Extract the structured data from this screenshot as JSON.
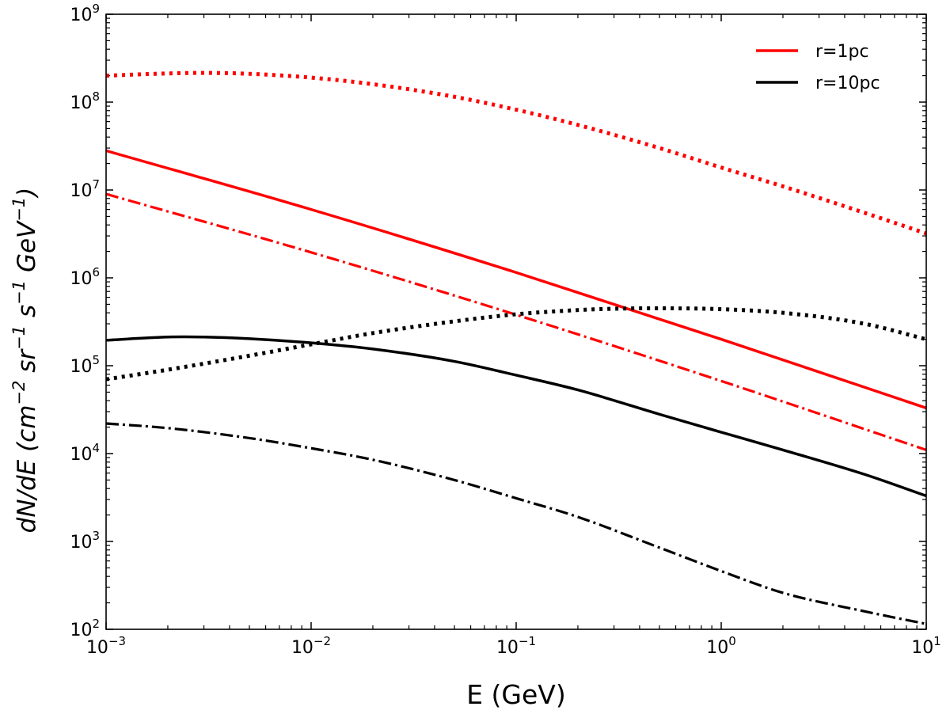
{
  "chart_data": {
    "type": "line",
    "xscale": "log",
    "yscale": "log",
    "xlim": [
      0.001,
      10
    ],
    "ylim": [
      100,
      1000000000
    ],
    "xlabel": "E (GeV)",
    "ylabel": {
      "prefix": "dN/dE (cm",
      "exp1": "−2",
      "mid1": " sr",
      "exp2": "−1",
      "mid2": " s",
      "exp3": "−1",
      "mid3": " GeV",
      "exp4": "−1",
      "suffix": ")"
    },
    "xticks": [
      {
        "value": 0.001,
        "base": "10",
        "exp": "−3"
      },
      {
        "value": 0.01,
        "base": "10",
        "exp": "−2"
      },
      {
        "value": 0.1,
        "base": "10",
        "exp": "−1"
      },
      {
        "value": 1,
        "base": "10",
        "exp": "0"
      },
      {
        "value": 10,
        "base": "10",
        "exp": "1"
      }
    ],
    "yticks": [
      {
        "value": 100,
        "base": "10",
        "exp": "2"
      },
      {
        "value": 1000,
        "base": "10",
        "exp": "3"
      },
      {
        "value": 10000,
        "base": "10",
        "exp": "4"
      },
      {
        "value": 100000,
        "base": "10",
        "exp": "5"
      },
      {
        "value": 1000000,
        "base": "10",
        "exp": "6"
      },
      {
        "value": 10000000,
        "base": "10",
        "exp": "7"
      },
      {
        "value": 100000000,
        "base": "10",
        "exp": "8"
      },
      {
        "value": 1000000000,
        "base": "10",
        "exp": "9"
      }
    ],
    "legend": {
      "placement": "top-right",
      "entries": [
        {
          "label": "r=1pc",
          "color": "#ff0000"
        },
        {
          "label": "r=10pc",
          "color": "#000000"
        }
      ]
    },
    "series": [
      {
        "name": "r=1pc solid",
        "color": "#ff0000",
        "style": "solid",
        "x": [
          0.001,
          0.01,
          0.1,
          1,
          10
        ],
        "y": [
          28000000,
          6000000,
          1150000,
          200000,
          33000
        ]
      },
      {
        "name": "r=1pc dashdot",
        "color": "#ff0000",
        "style": "dashdot",
        "x": [
          0.001,
          0.01,
          0.1,
          1,
          10
        ],
        "y": [
          9000000,
          1950000,
          380000,
          67000,
          11000
        ]
      },
      {
        "name": "r=1pc dotted",
        "color": "#ff0000",
        "style": "dotted",
        "x": [
          0.001,
          0.002,
          0.003,
          0.005,
          0.01,
          0.02,
          0.05,
          0.1,
          0.2,
          0.5,
          1,
          2,
          5,
          10
        ],
        "y": [
          200000000,
          212000000,
          215000000,
          210000000,
          190000000,
          160000000,
          115000000,
          82000000,
          55000000,
          30000000,
          18000000,
          11000000,
          5500000,
          3200000
        ]
      },
      {
        "name": "r=10pc solid",
        "color": "#000000",
        "style": "solid",
        "x": [
          0.001,
          0.002,
          0.003,
          0.005,
          0.01,
          0.02,
          0.05,
          0.1,
          0.2,
          0.5,
          1,
          2,
          5,
          10
        ],
        "y": [
          195000,
          212000,
          212000,
          203000,
          182000,
          155000,
          112000,
          78000,
          53000,
          28000,
          17500,
          11000,
          5800,
          3300
        ]
      },
      {
        "name": "r=10pc dashdot",
        "color": "#000000",
        "style": "dashdot",
        "x": [
          0.001,
          0.002,
          0.005,
          0.01,
          0.02,
          0.05,
          0.1,
          0.2,
          0.5,
          1,
          2,
          5,
          10
        ],
        "y": [
          22000,
          19500,
          15000,
          11500,
          8500,
          5000,
          3100,
          1900,
          850,
          460,
          260,
          160,
          115
        ]
      },
      {
        "name": "r=10pc dotted",
        "color": "#000000",
        "style": "dotted",
        "x": [
          0.001,
          0.002,
          0.005,
          0.01,
          0.02,
          0.05,
          0.1,
          0.2,
          0.3,
          0.5,
          1,
          2,
          5,
          10
        ],
        "y": [
          70000,
          90000,
          130000,
          175000,
          235000,
          320000,
          385000,
          430000,
          445000,
          450000,
          440000,
          400000,
          300000,
          200000
        ]
      }
    ]
  }
}
